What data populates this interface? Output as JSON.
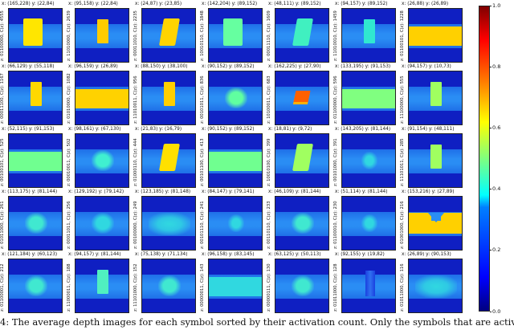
{
  "figure": {
    "cells": [
      {
        "title": "x: (165,228) y: (22,84)",
        "ylabel": "z: 01100000, C(z): 4555",
        "shape": "rect",
        "color": "#ffe600"
      },
      {
        "title": "x: (95,158) y: (22,84)",
        "ylabel": "z: 11010000, C(z): 2639",
        "shape": "rect-sm",
        "color": "#ffcc00"
      },
      {
        "title": "x: (24,87) y: (23,85)",
        "ylabel": "z: 00011010, C(z): 2235",
        "shape": "rect-tilt",
        "color": "#ffd400"
      },
      {
        "title": "x: (142,204) y: (89,152)",
        "ylabel": "z: 10010110, C(z): 1848",
        "shape": "rect",
        "color": "#66ffa0"
      },
      {
        "title": "x: (48,111) y: (89,152)",
        "ylabel": "z: 00011110, C(z): 1609",
        "shape": "rect-tilt",
        "color": "#40f0c0"
      },
      {
        "title": "x: (94,157) y: (89,152)",
        "ylabel": "z: 11010010, C(z): 1459",
        "shape": "rect-sm",
        "color": "#30e8d0"
      },
      {
        "title": "x: (26,88) y: (26,89)",
        "ylabel": "z: 01100101, C(z): 1228",
        "shape": "band-full",
        "color": "#ffd000"
      },
      {
        "title": "x: (66,129) y: (55,118)",
        "ylabel": "z: 00011100, C(z): 1167",
        "shape": "rect-sm",
        "color": "#ffd800"
      },
      {
        "title": "x: (96,159) y: (26,89)",
        "ylabel": "z: 01010000, C(z): 1082",
        "shape": "band-full",
        "color": "#ffd200"
      },
      {
        "title": "x: (88,150) y: (38,100)",
        "ylabel": "z: 11010011, C(z): 956",
        "shape": "rect-sm",
        "color": "#ffcf00"
      },
      {
        "title": "x: (90,152) y: (89,152)",
        "ylabel": "z: 00101011, C(z): 836",
        "shape": "blob",
        "color": "#60ffa0"
      },
      {
        "title": "x: (162,225) y: (27,90)",
        "ylabel": "z: 10100011, C(z): 683",
        "shape": "rect-red",
        "color": "#ff6000"
      },
      {
        "title": "x: (133,195) y: (91,153)",
        "ylabel": "z: 01100000, C(z): 596",
        "shape": "band-full",
        "color": "#80ff80"
      },
      {
        "title": "x: (94,157) y: (10,73)",
        "ylabel": "z: 11100000, C(z): 555",
        "shape": "rect-sm",
        "color": "#a0ff60"
      },
      {
        "title": "x: (52,115) y: (91,153)",
        "ylabel": "z: 00100101, C(z): 525",
        "shape": "band-full",
        "color": "#70ff90"
      },
      {
        "title": "x: (98,161) y: (67,130)",
        "ylabel": "z: 00010011, C(z): 502",
        "shape": "blob",
        "color": "#40f0d0"
      },
      {
        "title": "x: (21,83) y: (16,79)",
        "ylabel": "z: 01000110, C(z): 444",
        "shape": "rect-tilt",
        "color": "#ffe000"
      },
      {
        "title": "x: (90,152) y: (89,152)",
        "ylabel": "z: 00101100, C(z): 413",
        "shape": "band-full",
        "color": "#70ff90"
      },
      {
        "title": "x: (18,81) y: (9,72)",
        "ylabel": "z: 10010100, C(z): 399",
        "shape": "rect-tilt",
        "color": "#a0ff60"
      },
      {
        "title": "x: (143,205) y: (81,144)",
        "ylabel": "z: 00101000, C(z): 391",
        "shape": "blob-small",
        "color": "#30d8e0"
      },
      {
        "title": "x: (91,154) y: (48,111)",
        "ylabel": "z: 11101011, C(z): 285",
        "shape": "rect-sm",
        "color": "#a0ff60"
      },
      {
        "title": "x: (113,175) y: (81,144)",
        "ylabel": "z: 01011000, C(z): 261",
        "shape": "blob",
        "color": "#40e8d0"
      },
      {
        "title": "x: (129,192) y: (79,142)",
        "ylabel": "z: 00011011, C(z): 256",
        "shape": "blob",
        "color": "#30d8e0"
      },
      {
        "title": "x: (123,185) y: (81,148)",
        "ylabel": "z: 00100000, C(z): 249",
        "shape": "blob-wide",
        "color": "#30d8e0"
      },
      {
        "title": "x: (84,147) y: (79,141)",
        "ylabel": "z: 00101110, C(z): 241",
        "shape": "blob-small",
        "color": "#30d8e0"
      },
      {
        "title": "x: (46,109) y: (81,144)",
        "ylabel": "z: 00110110, C(z): 233",
        "shape": "blob",
        "color": "#40e8d0"
      },
      {
        "title": "x: (51,114) y: (81,144)",
        "ylabel": "z: 01100010, C(z): 230",
        "shape": "blob-small",
        "color": "#30d8e0"
      },
      {
        "title": "x: (153,216) y: (27,89)",
        "ylabel": "z: 01001000, C(z): 216",
        "shape": "notch",
        "color": "#ffd000"
      },
      {
        "title": "x: (121,184) y: (60,123)",
        "ylabel": "z: 01100001, C(z): 212",
        "shape": "blob",
        "color": "#40e8d0"
      },
      {
        "title": "x: (94,157) y: (81,144)",
        "ylabel": "z: 11000011, C(z): 188",
        "shape": "rect-sm",
        "color": "#50f0c0"
      },
      {
        "title": "x: (75,138) y: (71,134)",
        "ylabel": "z: 11101000, C(z): 152",
        "shape": "blob",
        "color": "#40e8d0"
      },
      {
        "title": "x: (96,158) y: (83,145)",
        "ylabel": "z: 00000011, C(z): 143",
        "shape": "band-full",
        "color": "#30d8e0"
      },
      {
        "title": "x: (63,125) y: (50,113)",
        "ylabel": "z: 00000111, C(z): 130",
        "shape": "blob",
        "color": "#40e8d0"
      },
      {
        "title": "x: (92,155) y: (19,82)",
        "ylabel": "z: 01011000, C(z): 128",
        "shape": "rect-thin",
        "color": "#2060f0"
      },
      {
        "title": "x: (26,89) y: (90,153)",
        "ylabel": "z: 01011000, C(z): 116",
        "shape": "blob-wide",
        "color": "#30d8e0"
      }
    ],
    "colorbar": {
      "ticks": [
        "1.0",
        "0.8",
        "0.6",
        "0.4",
        "0.2",
        "0.0"
      ]
    },
    "caption": "4: The average depth images for each symbol sorted by their activation count. Only the symbols that are activated m"
  }
}
